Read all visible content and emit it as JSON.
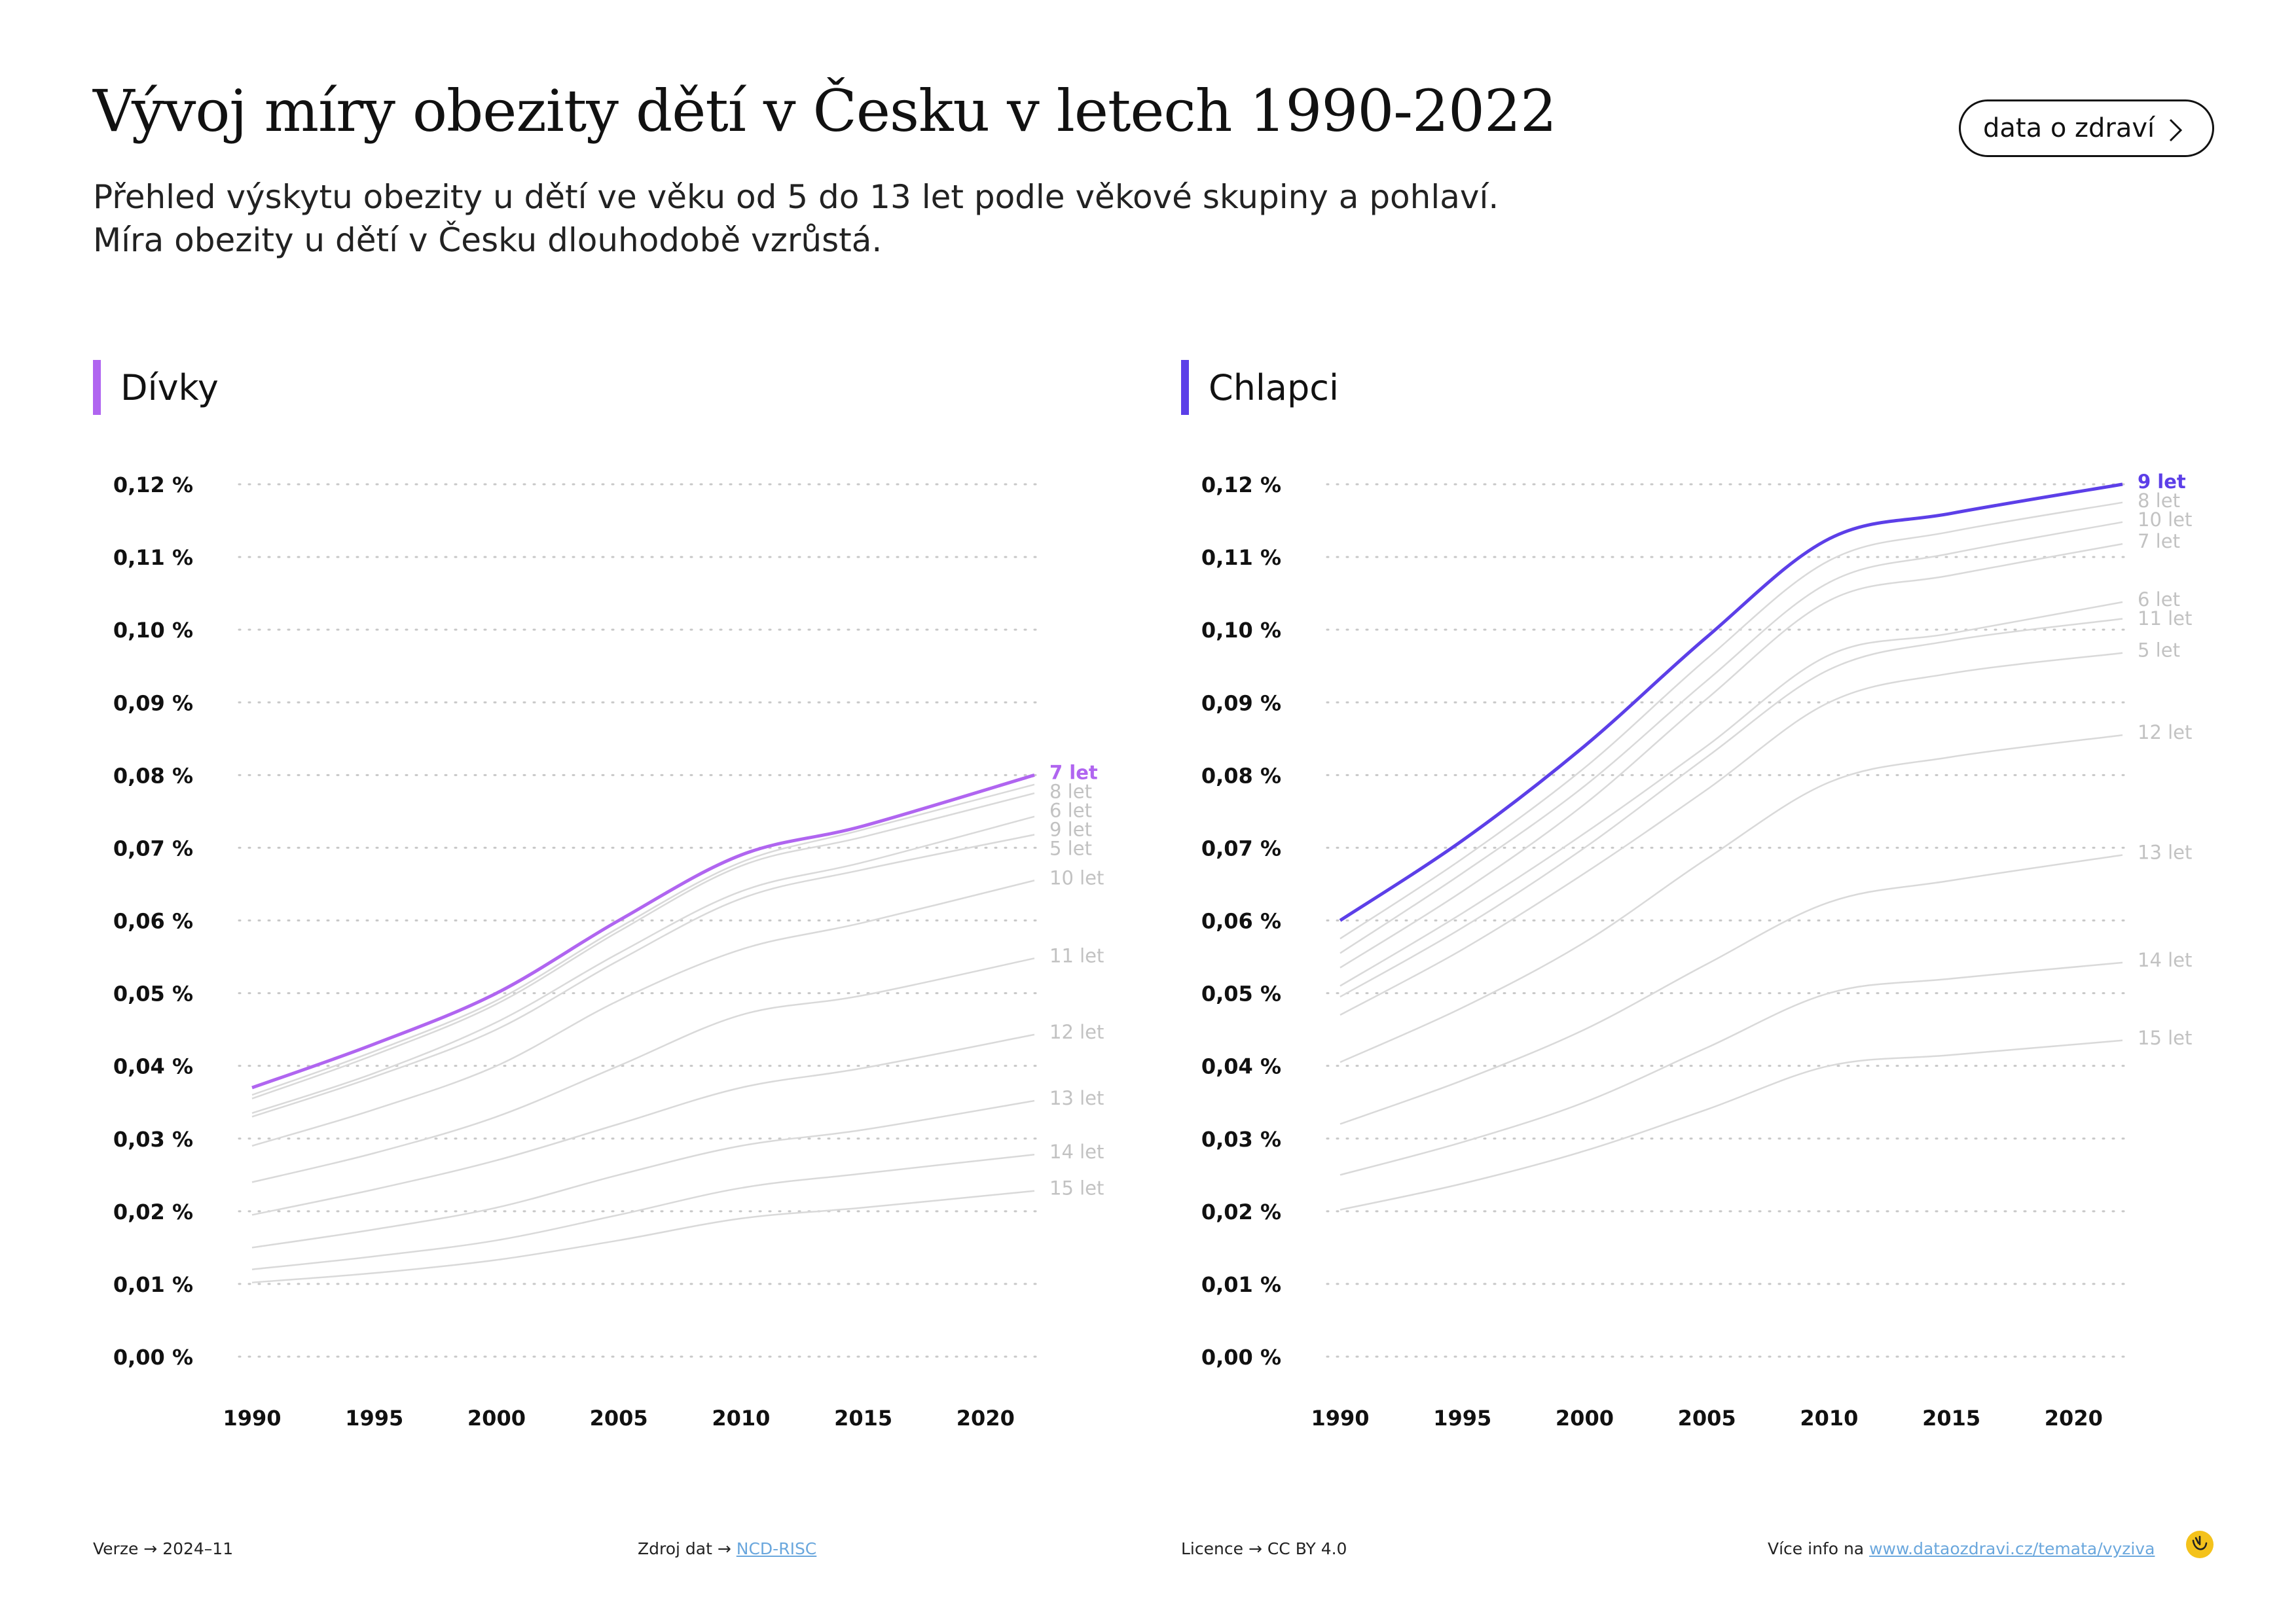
{
  "header": {
    "title": "Vývoj míry obezity dětí v Česku v letech 1990-2022",
    "subtitle_lines": [
      "Přehled výskytu obezity u dětí ve věku od 5 do 13 let podle věkové skupiny a pohlaví.",
      "Míra obezity u dětí v Česku dlouhodobě vzrůstá."
    ],
    "button_label": "data o zdraví"
  },
  "colors": {
    "girls": "#b065f0",
    "boys": "#5c3fe8",
    "other_lines": "#d9d9d9",
    "label_gray": "#c2c2c2",
    "grid": "#c8c8c8"
  },
  "chart_data": [
    {
      "type": "line",
      "panel_label": "Dívky",
      "highlight": "7 let",
      "x_ticks": [
        1990,
        1995,
        2000,
        2005,
        2010,
        2015,
        2020
      ],
      "y_ticks": [
        "0,00 %",
        "0,01 %",
        "0,02 %",
        "0,03 %",
        "0,04 %",
        "0,05 %",
        "0,06 %",
        "0,07 %",
        "0,08 %",
        "0,09 %",
        "0,10 %",
        "0,11 %",
        "0,12 %"
      ],
      "ylim": [
        0,
        0.12
      ],
      "xlim": [
        1990,
        2022
      ],
      "x": [
        1990,
        1995,
        2000,
        2005,
        2010,
        2015,
        2022
      ],
      "series": [
        {
          "name": "7 let",
          "values": [
            0.037,
            0.043,
            0.05,
            0.06,
            0.069,
            0.073,
            0.08
          ]
        },
        {
          "name": "8 let",
          "values": [
            0.036,
            0.042,
            0.049,
            0.059,
            0.068,
            0.0725,
            0.0787
          ]
        },
        {
          "name": "6 let",
          "values": [
            0.0355,
            0.0415,
            0.0485,
            0.0585,
            0.0675,
            0.0715,
            0.0775
          ]
        },
        {
          "name": "9 let",
          "values": [
            0.0335,
            0.039,
            0.046,
            0.0555,
            0.064,
            0.068,
            0.0743
          ]
        },
        {
          "name": "5 let",
          "values": [
            0.033,
            0.0385,
            0.045,
            0.0545,
            0.063,
            0.067,
            0.0718
          ]
        },
        {
          "name": "10 let",
          "values": [
            0.029,
            0.034,
            0.04,
            0.049,
            0.056,
            0.0597,
            0.0655
          ]
        },
        {
          "name": "11 let",
          "values": [
            0.024,
            0.028,
            0.033,
            0.04,
            0.047,
            0.0497,
            0.0548
          ]
        },
        {
          "name": "12 let",
          "values": [
            0.0195,
            0.023,
            0.027,
            0.032,
            0.037,
            0.0397,
            0.0443
          ]
        },
        {
          "name": "13 let",
          "values": [
            0.015,
            0.0175,
            0.0205,
            0.025,
            0.029,
            0.0312,
            0.0352
          ]
        },
        {
          "name": "14 let",
          "values": [
            0.012,
            0.0138,
            0.016,
            0.0195,
            0.0232,
            0.0252,
            0.0278
          ]
        },
        {
          "name": "15 let",
          "values": [
            0.0102,
            0.0115,
            0.0133,
            0.016,
            0.019,
            0.0205,
            0.0228
          ]
        }
      ]
    },
    {
      "type": "line",
      "panel_label": "Chlapci",
      "highlight": "9 let",
      "x_ticks": [
        1990,
        1995,
        2000,
        2005,
        2010,
        2015,
        2020
      ],
      "y_ticks": [
        "0,00 %",
        "0,01 %",
        "0,02 %",
        "0,03 %",
        "0,04 %",
        "0,05 %",
        "0,06 %",
        "0,07 %",
        "0,08 %",
        "0,09 %",
        "0,10 %",
        "0,11 %",
        "0,12 %"
      ],
      "ylim": [
        0,
        0.12
      ],
      "xlim": [
        1990,
        2022
      ],
      "x": [
        1990,
        1995,
        2000,
        2005,
        2010,
        2015,
        2022
      ],
      "series": [
        {
          "name": "9 let",
          "values": [
            0.06,
            0.071,
            0.084,
            0.099,
            0.1125,
            0.116,
            0.12
          ]
        },
        {
          "name": "8 let",
          "values": [
            0.0575,
            0.0685,
            0.081,
            0.096,
            0.1095,
            0.1135,
            0.1175
          ]
        },
        {
          "name": "10 let",
          "values": [
            0.0555,
            0.0665,
            0.0785,
            0.093,
            0.1065,
            0.1105,
            0.1148
          ]
        },
        {
          "name": "7 let",
          "values": [
            0.0535,
            0.064,
            0.076,
            0.0905,
            0.104,
            0.1075,
            0.1118
          ]
        },
        {
          "name": "6 let",
          "values": [
            0.051,
            0.061,
            0.072,
            0.084,
            0.0965,
            0.0995,
            0.1038
          ]
        },
        {
          "name": "11 let",
          "values": [
            0.0495,
            0.059,
            0.07,
            0.0825,
            0.0945,
            0.0985,
            0.1015
          ]
        },
        {
          "name": "5 let",
          "values": [
            0.047,
            0.056,
            0.0665,
            0.078,
            0.09,
            0.094,
            0.0968
          ]
        },
        {
          "name": "12 let",
          "values": [
            0.0405,
            0.048,
            0.057,
            0.0685,
            0.079,
            0.0825,
            0.0855
          ]
        },
        {
          "name": "13 let",
          "values": [
            0.032,
            0.038,
            0.045,
            0.054,
            0.0625,
            0.0655,
            0.069
          ]
        },
        {
          "name": "14 let",
          "values": [
            0.025,
            0.0295,
            0.035,
            0.0425,
            0.05,
            0.052,
            0.0542
          ]
        },
        {
          "name": "15 let",
          "values": [
            0.0202,
            0.0238,
            0.0283,
            0.034,
            0.04,
            0.0415,
            0.0435
          ]
        }
      ]
    }
  ],
  "footer": {
    "version_label": "Verze",
    "version_value": "2024–11",
    "source_label": "Zdroj dat",
    "source_link": "NCD-RISC",
    "license_label": "Licence",
    "license_value": "CC BY 4.0",
    "info_label": "Více info na",
    "info_link": "www.dataozdravi.cz/temata/vyziva",
    "arrow": "→"
  }
}
